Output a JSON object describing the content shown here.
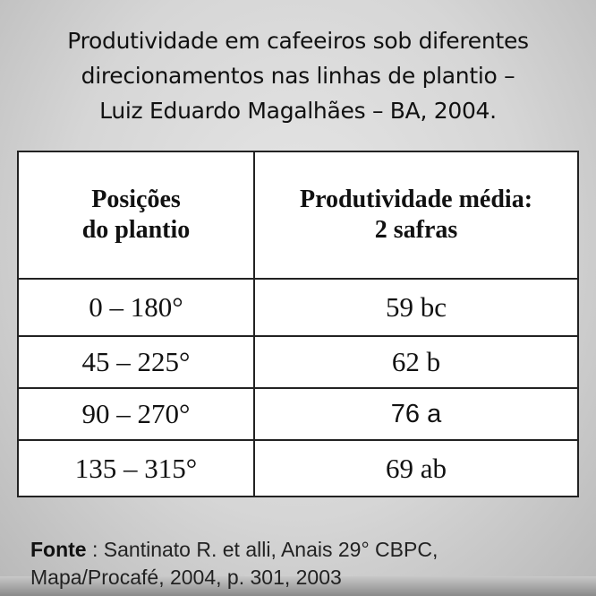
{
  "title": {
    "line1": "Produtividade em cafeeiros sob diferentes",
    "line2": "direcionamentos nas linhas de plantio –",
    "line3": "Luiz Eduardo Magalhães – BA, 2004."
  },
  "table": {
    "headers": [
      {
        "line1": "Posições",
        "line2": "do plantio"
      },
      {
        "line1": "Produtividade média:",
        "line2": "2 safras"
      }
    ],
    "rows": [
      {
        "position": "0 – 180°",
        "productivity": "59 bc"
      },
      {
        "position": "45 – 225°",
        "productivity": "62 b"
      },
      {
        "position": "90 – 270°",
        "productivity": "76 a"
      },
      {
        "position": "135 – 315°",
        "productivity": "69 ab"
      }
    ]
  },
  "source": {
    "label": "Fonte",
    "line1": " : Santinato R. et alli, Anais 29° CBPC,",
    "line2": "Mapa/Procafé, 2004, p. 301, 2003"
  }
}
